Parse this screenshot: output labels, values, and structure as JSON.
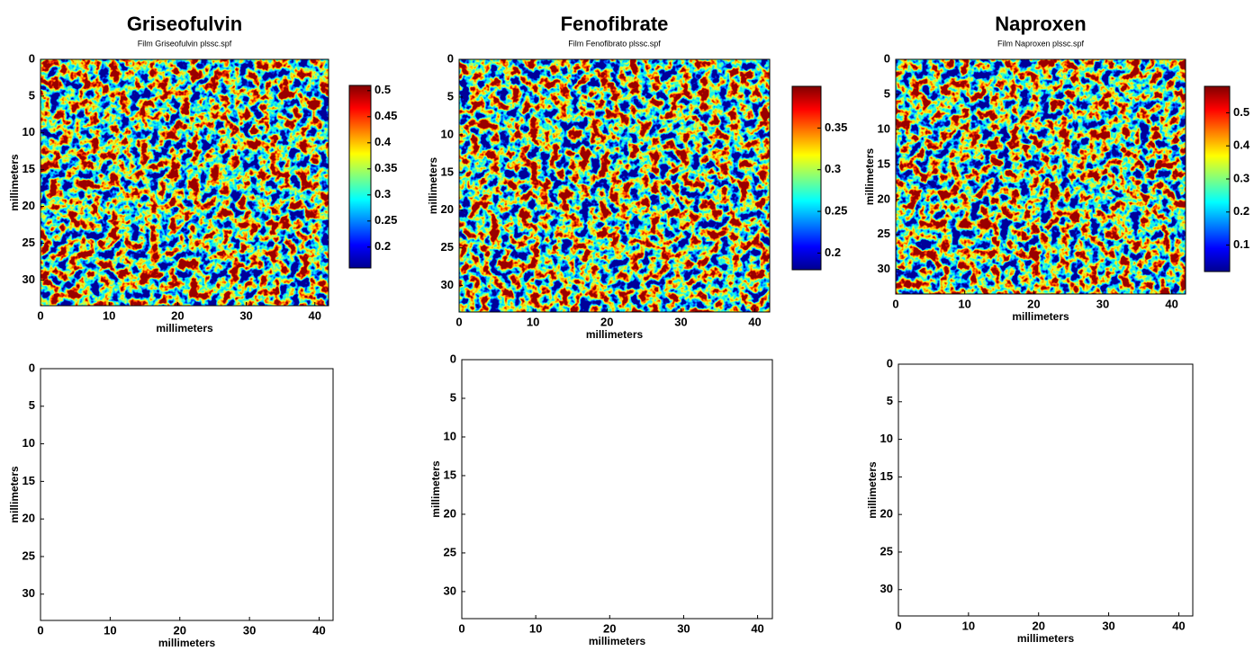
{
  "chart_data": [
    {
      "type": "heatmap",
      "title": "Griseofulvin",
      "subtitle": "Film Griseofulvin plssc.spf",
      "xlabel": "millimeters",
      "ylabel": "millimeters",
      "xlim": [
        0,
        42
      ],
      "ylim": [
        0,
        33.5
      ],
      "y_reversed": true,
      "xticks": [
        0,
        10,
        20,
        30,
        40
      ],
      "yticks": [
        0,
        5,
        10,
        15,
        20,
        25,
        30
      ],
      "colorbar": {
        "clim": [
          0.16,
          0.51
        ],
        "ticks": [
          0.2,
          0.25,
          0.3,
          0.35,
          0.4,
          0.45,
          0.5
        ]
      }
    },
    {
      "type": "heatmap",
      "title": "Fenofibrate",
      "subtitle": "Film Fenofibrato plssc.spf",
      "xlabel": "millimeters",
      "ylabel": "millimeters",
      "xlim": [
        0,
        42
      ],
      "ylim": [
        0,
        33.5
      ],
      "y_reversed": true,
      "xticks": [
        0,
        10,
        20,
        30,
        40
      ],
      "yticks": [
        0,
        5,
        10,
        15,
        20,
        25,
        30
      ],
      "colorbar": {
        "clim": [
          0.18,
          0.4
        ],
        "ticks": [
          0.2,
          0.25,
          0.3,
          0.35
        ]
      }
    },
    {
      "type": "heatmap",
      "title": "Naproxen",
      "subtitle": "Film Naproxen plssc.spf",
      "xlabel": "millimeters",
      "ylabel": "millimeters",
      "xlim": [
        0,
        42
      ],
      "ylim": [
        0,
        33.5
      ],
      "y_reversed": true,
      "xticks": [
        0,
        10,
        20,
        30,
        40
      ],
      "yticks": [
        0,
        5,
        10,
        15,
        20,
        25,
        30
      ],
      "colorbar": {
        "clim": [
          0.02,
          0.58
        ],
        "ticks": [
          0.1,
          0.2,
          0.3,
          0.4,
          0.5
        ]
      }
    },
    {
      "type": "binary",
      "xlabel": "millimeters",
      "ylabel": "millimeters",
      "xlim": [
        0,
        42
      ],
      "ylim": [
        0,
        33.5
      ],
      "y_reversed": true,
      "xticks": [
        0,
        10,
        20,
        30,
        40
      ],
      "yticks": [
        0,
        5,
        10,
        15,
        20,
        25,
        30
      ]
    },
    {
      "type": "binary",
      "xlabel": "millimeters",
      "ylabel": "millimeters",
      "xlim": [
        0,
        42
      ],
      "ylim": [
        0,
        33.5
      ],
      "y_reversed": true,
      "xticks": [
        0,
        10,
        20,
        30,
        40
      ],
      "yticks": [
        0,
        5,
        10,
        15,
        20,
        25,
        30
      ]
    },
    {
      "type": "binary",
      "xlabel": "millimeters",
      "ylabel": "millimeters",
      "xlim": [
        0,
        42
      ],
      "ylim": [
        0,
        33.5
      ],
      "y_reversed": true,
      "xticks": [
        0,
        10,
        20,
        30,
        40
      ],
      "yticks": [
        0,
        5,
        10,
        15,
        20,
        25,
        30
      ]
    }
  ]
}
